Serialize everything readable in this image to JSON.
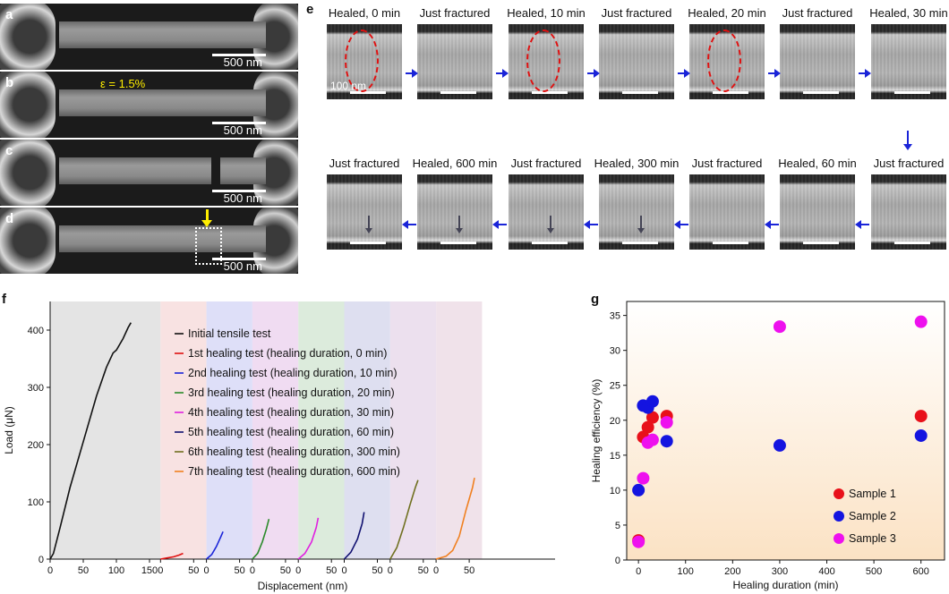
{
  "panels": {
    "a": "a",
    "b": "b",
    "c": "c",
    "d": "d",
    "e": "e",
    "f": "f",
    "g": "g"
  },
  "sem": {
    "scale": "500 nm",
    "strain": "ε = 1.5%"
  },
  "tem": {
    "scale": "100 nm",
    "row1": [
      "Healed, 0 min",
      "Just fractured",
      "Healed, 10 min",
      "Just fractured",
      "Healed, 20 min",
      "Just fractured",
      "Healed, 30 min"
    ],
    "row2": [
      "Just fractured",
      "Healed, 600 min",
      "Just fractured",
      "Healed, 300 min",
      "Just fractured",
      "Healed, 60 min",
      "Just fractured"
    ]
  },
  "colors": {
    "arrow": "#1a24d8",
    "ellipse": "#e01010",
    "yellow": "#ffee00"
  },
  "chart_data": [
    {
      "type": "line",
      "xlabel": "Displacement (nm)",
      "ylabel": "Load (μN)",
      "ylim": [
        0,
        450
      ],
      "yticks": [
        0,
        100,
        200,
        300,
        400
      ],
      "xticks_first": [
        0,
        50,
        100,
        150
      ],
      "xticks_repeat": [
        0,
        50
      ],
      "legend_position": "top",
      "series": [
        {
          "name": "Initial tensile test",
          "color": "#111111",
          "bg": "#e4e4e4",
          "xmax": 170,
          "points": [
            [
              0,
              0
            ],
            [
              5,
              10
            ],
            [
              15,
              55
            ],
            [
              30,
              125
            ],
            [
              50,
              205
            ],
            [
              70,
              285
            ],
            [
              85,
              335
            ],
            [
              95,
              360
            ],
            [
              100,
              365
            ],
            [
              110,
              385
            ],
            [
              118,
              405
            ],
            [
              122,
              413
            ]
          ]
        },
        {
          "name": "1st healing test (healing duration, 0 min)",
          "color": "#e01010",
          "bg": "#f8e2e2",
          "xmax": 70,
          "points": [
            [
              0,
              0
            ],
            [
              10,
              2
            ],
            [
              20,
              4
            ],
            [
              28,
              7
            ],
            [
              34,
              10
            ]
          ]
        },
        {
          "name": "2nd healing test (healing duration, 10 min)",
          "color": "#1a24d8",
          "bg": "#dedff8",
          "xmax": 70,
          "points": [
            [
              0,
              0
            ],
            [
              8,
              8
            ],
            [
              15,
              22
            ],
            [
              22,
              40
            ],
            [
              25,
              48
            ]
          ]
        },
        {
          "name": "3rd healing test (healing duration, 20 min)",
          "color": "#2a8a2a",
          "bg": "#f0dcf2",
          "xmax": 70,
          "points": [
            [
              0,
              0
            ],
            [
              8,
              10
            ],
            [
              15,
              30
            ],
            [
              21,
              52
            ],
            [
              25,
              70
            ]
          ]
        },
        {
          "name": "4th healing test (healing duration, 30 min)",
          "color": "#e020e0",
          "bg": "#dcebdc",
          "xmax": 70,
          "points": [
            [
              0,
              0
            ],
            [
              10,
              10
            ],
            [
              20,
              30
            ],
            [
              27,
              55
            ],
            [
              30,
              72
            ]
          ]
        },
        {
          "name": "5th healing test (healing duration, 60 min)",
          "color": "#101070",
          "bg": "#dedff0",
          "xmax": 70,
          "points": [
            [
              0,
              0
            ],
            [
              10,
              12
            ],
            [
              20,
              35
            ],
            [
              27,
              62
            ],
            [
              30,
              82
            ]
          ]
        },
        {
          "name": "6th healing test (healing duration, 300 min)",
          "color": "#707020",
          "bg": "#ece0ee",
          "xmax": 70,
          "points": [
            [
              0,
              0
            ],
            [
              10,
              20
            ],
            [
              20,
              55
            ],
            [
              30,
              95
            ],
            [
              38,
              125
            ],
            [
              42,
              138
            ]
          ]
        },
        {
          "name": "7th healing test (healing duration, 600 min)",
          "color": "#f08020",
          "bg": "#f0e2ea",
          "xmax": 70,
          "points": [
            [
              0,
              0
            ],
            [
              15,
              5
            ],
            [
              25,
              15
            ],
            [
              35,
              40
            ],
            [
              45,
              85
            ],
            [
              55,
              125
            ],
            [
              58,
              142
            ]
          ]
        }
      ]
    },
    {
      "type": "scatter",
      "xlabel": "Healing duration (min)",
      "ylabel": "Healing efficiency (%)",
      "xlim": [
        -25,
        650
      ],
      "ylim": [
        0,
        37
      ],
      "xticks": [
        0,
        100,
        200,
        300,
        400,
        500,
        600
      ],
      "yticks": [
        0,
        5,
        10,
        15,
        20,
        25,
        30,
        35
      ],
      "legend_position": "bottom-right",
      "series": [
        {
          "name": "Sample 1",
          "color": "#e8101a",
          "points": [
            [
              0,
              2.8
            ],
            [
              10,
              17.6
            ],
            [
              20,
              19.0
            ],
            [
              30,
              20.4
            ],
            [
              60,
              20.6
            ],
            [
              600,
              20.6
            ]
          ]
        },
        {
          "name": "Sample 2",
          "color": "#1414e0",
          "points": [
            [
              0,
              10.0
            ],
            [
              10,
              22.1
            ],
            [
              20,
              21.8
            ],
            [
              30,
              22.7
            ],
            [
              60,
              17.0
            ],
            [
              300,
              16.4
            ],
            [
              600,
              17.8
            ]
          ]
        },
        {
          "name": "Sample 3",
          "color": "#ee10ee",
          "points": [
            [
              0,
              2.6
            ],
            [
              10,
              11.7
            ],
            [
              20,
              16.8
            ],
            [
              30,
              17.2
            ],
            [
              60,
              19.7
            ],
            [
              300,
              33.4
            ],
            [
              600,
              34.1
            ]
          ]
        }
      ]
    }
  ]
}
